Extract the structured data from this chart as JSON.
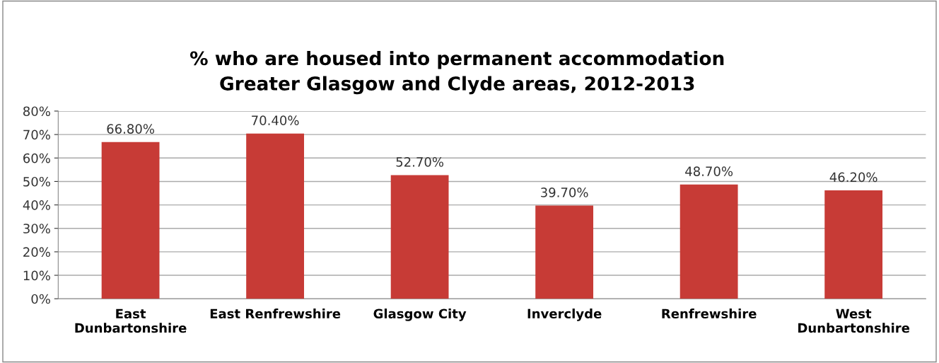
{
  "chart_data": {
    "type": "bar",
    "title": "% who are housed into permanent accommodation\nGreater Glasgow and Clyde areas, 2012-2013",
    "categories": [
      "East\nDunbartonshire",
      "East Renfrewshire",
      "Glasgow City",
      "Inverclyde",
      "Renfrewshire",
      "West\nDunbartonshire"
    ],
    "values": [
      66.8,
      70.4,
      52.7,
      39.7,
      48.7,
      46.2
    ],
    "value_labels": [
      "66.80%",
      "70.40%",
      "52.70%",
      "39.70%",
      "48.70%",
      "46.20%"
    ],
    "color": "#c73b36",
    "ylim": [
      0,
      80
    ],
    "yticks": [
      {
        "value": 0,
        "label": "0%"
      },
      {
        "value": 10,
        "label": "10%"
      },
      {
        "value": 20,
        "label": "20%"
      },
      {
        "value": 30,
        "label": "30%"
      },
      {
        "value": 40,
        "label": "40%"
      },
      {
        "value": 50,
        "label": "50%"
      },
      {
        "value": 60,
        "label": "60%"
      },
      {
        "value": 70,
        "label": "70%"
      },
      {
        "value": 80,
        "label": "80%"
      }
    ],
    "grid": "y",
    "legend": false
  }
}
